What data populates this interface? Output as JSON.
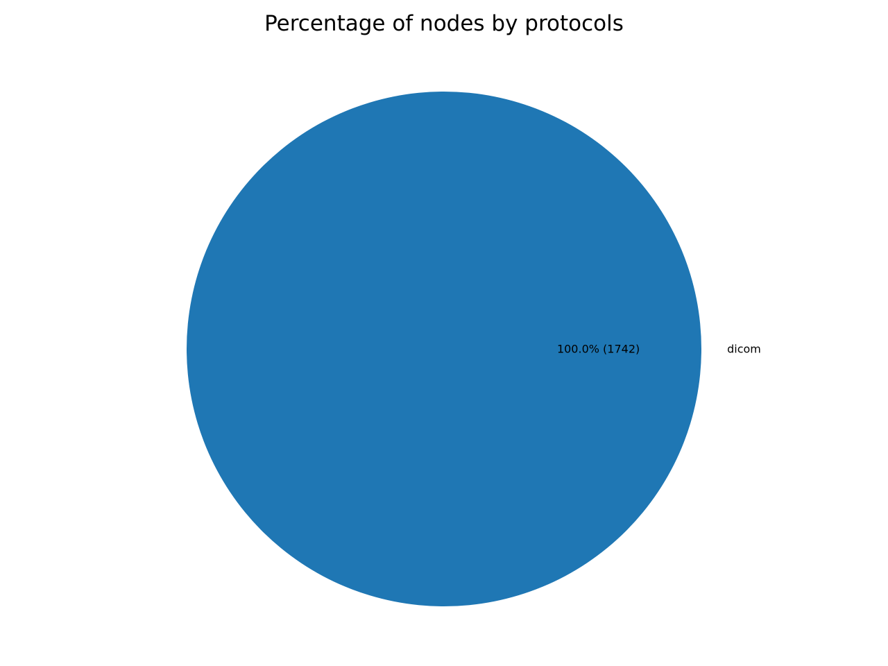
{
  "chart_data": {
    "type": "pie",
    "title": "Percentage of nodes by protocols",
    "slices": [
      {
        "label": "dicom",
        "value": 1742,
        "percent_label": "100.0% (1742)",
        "color": "#1f77b4"
      }
    ],
    "legend": "none"
  }
}
